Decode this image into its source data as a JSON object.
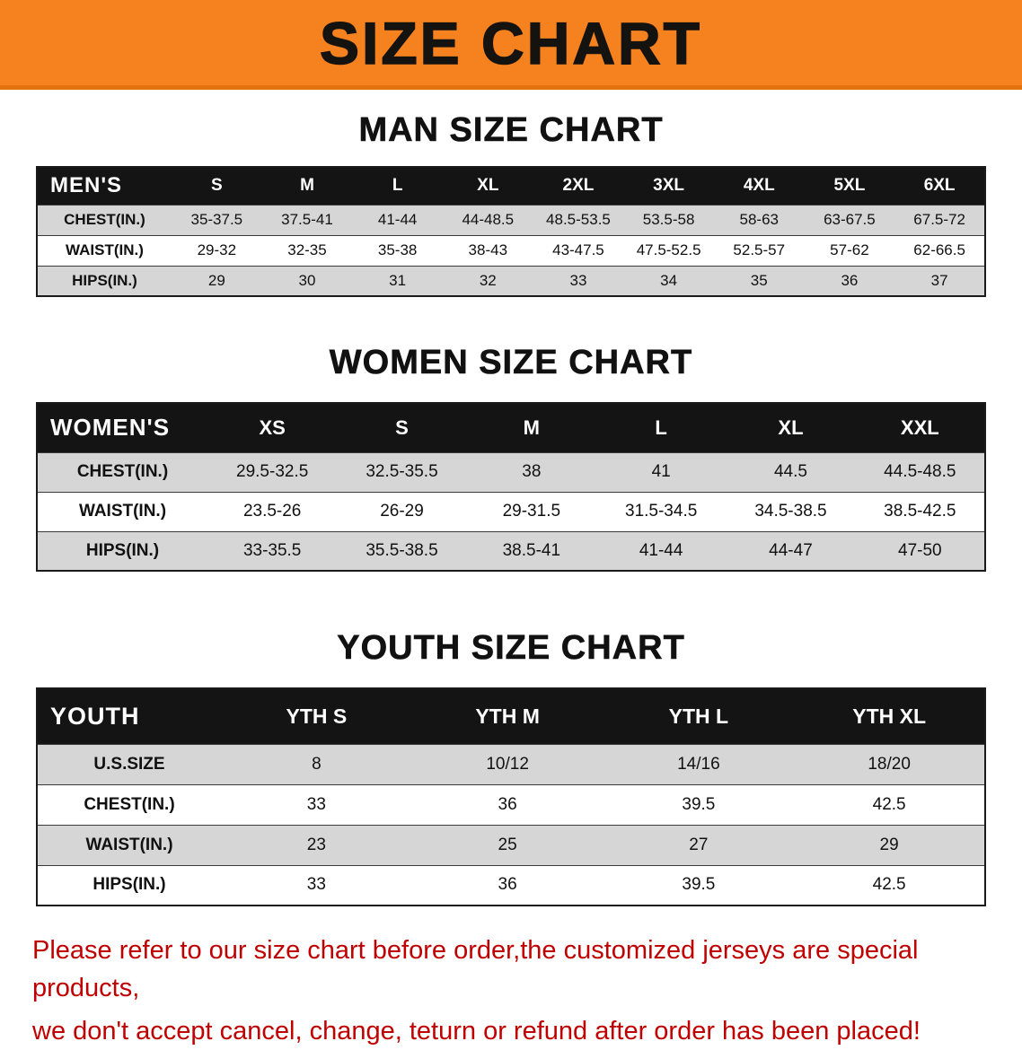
{
  "banner": {
    "title": "SIZE CHART",
    "bg_color": "#f6821f",
    "text_color": "#151310"
  },
  "colors": {
    "table_header_bg": "#141414",
    "table_header_text": "#ffffff",
    "stripe_row": "#d6d6d6",
    "footer_text": "#c00000"
  },
  "sections": [
    {
      "title": "MAN SIZE CHART",
      "header_label": "MEN'S",
      "columns": [
        "S",
        "M",
        "L",
        "XL",
        "2XL",
        "3XL",
        "4XL",
        "5XL",
        "6XL"
      ],
      "rows": [
        {
          "label": "CHEST(IN.)",
          "values": [
            "35-37.5",
            "37.5-41",
            "41-44",
            "44-48.5",
            "48.5-53.5",
            "53.5-58",
            "58-63",
            "63-67.5",
            "67.5-72"
          ]
        },
        {
          "label": "WAIST(IN.)",
          "values": [
            "29-32",
            "32-35",
            "35-38",
            "38-43",
            "43-47.5",
            "47.5-52.5",
            "52.5-57",
            "57-62",
            "62-66.5"
          ]
        },
        {
          "label": "HIPS(IN.)",
          "values": [
            "29",
            "30",
            "31",
            "32",
            "33",
            "34",
            "35",
            "36",
            "37"
          ]
        }
      ]
    },
    {
      "title": "WOMEN SIZE CHART",
      "header_label": "WOMEN'S",
      "columns": [
        "XS",
        "S",
        "M",
        "L",
        "XL",
        "XXL"
      ],
      "rows": [
        {
          "label": "CHEST(IN.)",
          "values": [
            "29.5-32.5",
            "32.5-35.5",
            "38",
            "41",
            "44.5",
            "44.5-48.5"
          ]
        },
        {
          "label": "WAIST(IN.)",
          "values": [
            "23.5-26",
            "26-29",
            "29-31.5",
            "31.5-34.5",
            "34.5-38.5",
            "38.5-42.5"
          ]
        },
        {
          "label": "HIPS(IN.)",
          "values": [
            "33-35.5",
            "35.5-38.5",
            "38.5-41",
            "41-44",
            "44-47",
            "47-50"
          ]
        }
      ]
    },
    {
      "title": "YOUTH SIZE CHART",
      "header_label": "YOUTH",
      "columns": [
        "YTH S",
        "YTH M",
        "YTH L",
        "YTH XL"
      ],
      "rows": [
        {
          "label": "U.S.SIZE",
          "values": [
            "8",
            "10/12",
            "14/16",
            "18/20"
          ]
        },
        {
          "label": "CHEST(IN.)",
          "values": [
            "33",
            "36",
            "39.5",
            "42.5"
          ]
        },
        {
          "label": "WAIST(IN.)",
          "values": [
            "23",
            "25",
            "27",
            "29"
          ]
        },
        {
          "label": "HIPS(IN.)",
          "values": [
            "33",
            "36",
            "39.5",
            "42.5"
          ]
        }
      ]
    }
  ],
  "footer": {
    "lines": [
      "Please refer to our size chart before order,the customized jerseys are special products,",
      "we don't accept cancel, change, teturn or refund after order has been placed!"
    ]
  }
}
